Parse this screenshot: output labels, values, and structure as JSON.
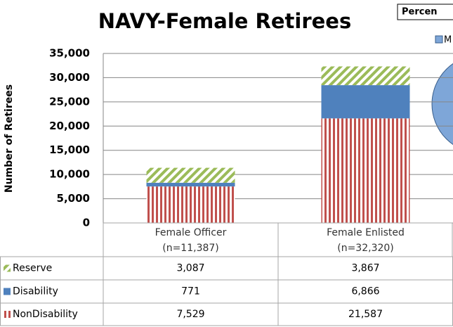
{
  "chart_data": {
    "type": "stacked_bar",
    "title": "NAVY-Female Retirees",
    "ylabel": "Number of Retirees",
    "categories": [
      [
        "Female Officer",
        "(n=11,387)"
      ],
      [
        "Female Enlisted",
        "(n=32,320)"
      ]
    ],
    "series": [
      {
        "name": "NonDisability",
        "color": "#c0504d",
        "values": [
          7529,
          21587
        ],
        "value_labels": [
          "7,529",
          "21,587"
        ]
      },
      {
        "name": "Disability",
        "color": "#4f81bd",
        "values": [
          771,
          6866
        ],
        "value_labels": [
          "771",
          "6,866"
        ]
      },
      {
        "name": "Reserve",
        "color": "#9bbb59",
        "values": [
          3087,
          3867
        ],
        "value_labels": [
          "3,087",
          "3,867"
        ]
      }
    ],
    "ylim": [
      0,
      35000
    ],
    "yticks": [
      0,
      {
        "value": 5000,
        "label": "5,000"
      },
      {
        "value": 10000,
        "label": "10,000"
      },
      {
        "value": 15000,
        "label": "15,000"
      },
      {
        "value": 20000,
        "label": "20,000"
      },
      {
        "value": 25000,
        "label": "25,000"
      },
      {
        "value": 30000,
        "label": "30,000"
      },
      {
        "value": 35000,
        "label": "35,000"
      }
    ],
    "grid": true,
    "inset_title": "Percen",
    "inset_legend": "M",
    "inset_color": "#7ea6d8"
  }
}
